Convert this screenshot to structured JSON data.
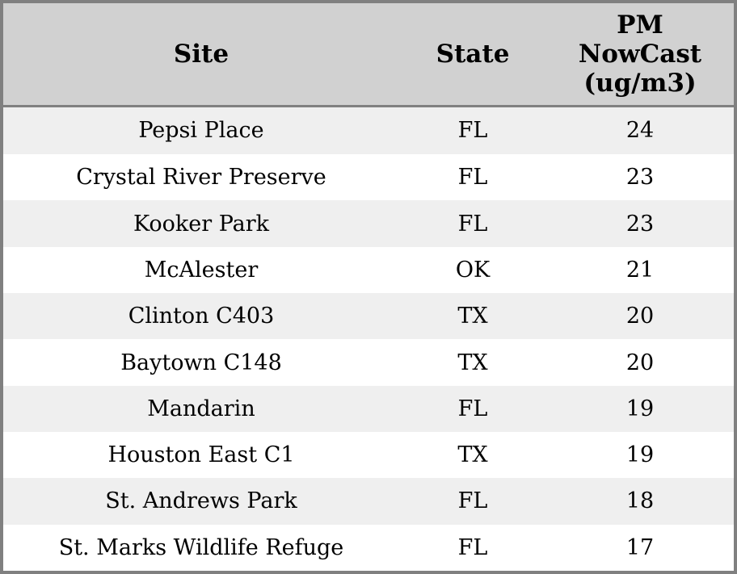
{
  "table": {
    "header": {
      "site": "Site",
      "state": "State",
      "pm_label": "PM NowCast (ug/m3)",
      "pm_lines": [
        "PM",
        "NowCast",
        "(ug/m3)"
      ]
    },
    "rows": [
      {
        "site": "Pepsi Place",
        "state": "FL",
        "pm": "24"
      },
      {
        "site": "Crystal River Preserve",
        "state": "FL",
        "pm": "23"
      },
      {
        "site": "Kooker Park",
        "state": "FL",
        "pm": "23"
      },
      {
        "site": "McAlester",
        "state": "OK",
        "pm": "21"
      },
      {
        "site": "Clinton C403",
        "state": "TX",
        "pm": "20"
      },
      {
        "site": "Baytown C148",
        "state": "TX",
        "pm": "20"
      },
      {
        "site": "Mandarin",
        "state": "FL",
        "pm": "19"
      },
      {
        "site": "Houston East C1",
        "state": "TX",
        "pm": "19"
      },
      {
        "site": "St. Andrews Park",
        "state": "FL",
        "pm": "18"
      },
      {
        "site": "St. Marks Wildlife Refuge",
        "state": "FL",
        "pm": "17"
      }
    ]
  },
  "colors": {
    "border": "#808080",
    "header_bg": "#d1d1d1",
    "row_stripe_bg": "#efefef",
    "row_bg": "#ffffff",
    "text": "#000000"
  }
}
